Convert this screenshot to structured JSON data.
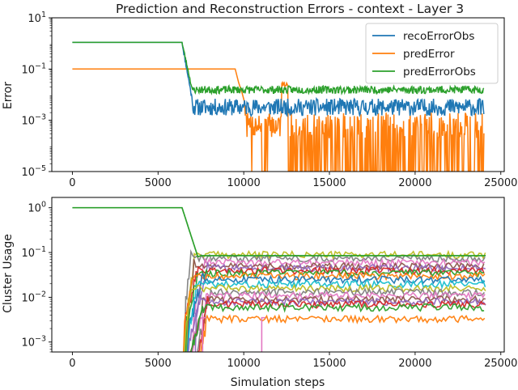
{
  "chart_data": [
    {
      "type": "line",
      "title": "Prediction and Reconstruction Errors - context - Layer 3",
      "xlabel": "",
      "ylabel": "Error",
      "yscale": "log",
      "xlim": [
        -1200,
        25200
      ],
      "ylim": [
        1e-05,
        10
      ],
      "x_ticks": [
        0,
        5000,
        10000,
        15000,
        20000,
        25000
      ],
      "x_tick_labels": [
        "0",
        "5000",
        "10000",
        "15000",
        "20000",
        "25000"
      ],
      "y_ticks": [
        1e-05,
        0.001,
        0.1,
        10
      ],
      "y_tick_labels": [
        {
          "base": "10",
          "exp": "−5"
        },
        {
          "base": "10",
          "exp": "−3"
        },
        {
          "base": "10",
          "exp": "−1"
        },
        {
          "base": "10",
          "exp": "1"
        }
      ],
      "legend": "top-right",
      "series": [
        {
          "name": "recoErrorObs",
          "color": "#1f77b4",
          "plateau": 1.1,
          "drop_start": 6400,
          "drop_end": 7000,
          "settle": 0.003,
          "noise_low": 0.0015,
          "noise_high": 0.007,
          "x_end": 24000
        },
        {
          "name": "predError",
          "color": "#ff7f0e",
          "plateau": 0.1,
          "drop_start": 9500,
          "settle_low": 1e-05,
          "settle_high": 0.001,
          "x_end": 24000
        },
        {
          "name": "predErrorObs",
          "color": "#2ca02c",
          "plateau": 1.1,
          "drop_start": 6400,
          "drop_end": 7000,
          "settle": 0.015,
          "noise_low": 0.011,
          "noise_high": 0.022,
          "x_end": 24000
        }
      ]
    },
    {
      "type": "line",
      "title": "",
      "xlabel": "Simulation steps",
      "ylabel": "Cluster Usage",
      "yscale": "log",
      "xlim": [
        -1200,
        25200
      ],
      "ylim": [
        0.0006,
        1.7
      ],
      "x_ticks": [
        0,
        5000,
        10000,
        15000,
        20000,
        25000
      ],
      "x_tick_labels": [
        "0",
        "5000",
        "10000",
        "15000",
        "20000",
        "25000"
      ],
      "y_ticks": [
        0.001,
        0.01,
        0.1,
        1
      ],
      "y_tick_labels": [
        {
          "base": "10",
          "exp": "−3"
        },
        {
          "base": "10",
          "exp": "−2"
        },
        {
          "base": "10",
          "exp": "−1"
        },
        {
          "base": "10",
          "exp": "0"
        }
      ],
      "cluster_start": 1.0,
      "cluster_drop_start": 6400,
      "cluster_drop_end": 7300,
      "x_end": 24000,
      "cluster_levels": [
        0.09,
        0.075,
        0.06,
        0.05,
        0.045,
        0.04,
        0.035,
        0.03,
        0.025,
        0.02,
        0.016,
        0.013,
        0.011,
        0.009,
        0.008,
        0.007,
        0.006,
        0.0033
      ],
      "cluster_colors": [
        "#bcbd22",
        "#7f7f7f",
        "#e377c2",
        "#8c564b",
        "#9467bd",
        "#d62728",
        "#2ca02c",
        "#ff7f0e",
        "#1f77b4",
        "#17becf"
      ]
    }
  ]
}
